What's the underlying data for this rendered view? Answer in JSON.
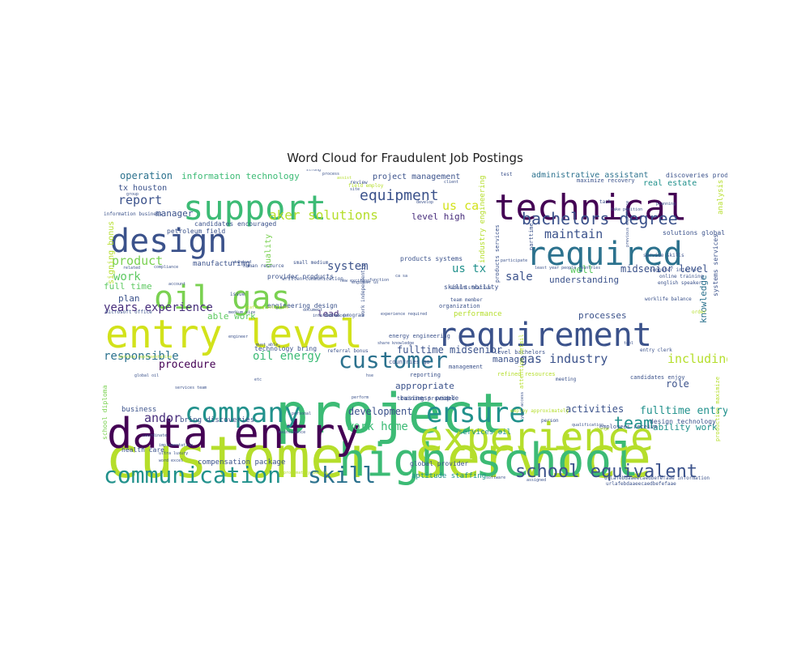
{
  "title": "Word Cloud for Fraudulent Job Postings",
  "palette": [
    "#440154",
    "#3b528b",
    "#21918c",
    "#3cbb75",
    "#5ec962",
    "#b5de2b",
    "#fde725",
    "#2c728e",
    "#472d7b",
    "#7ad151"
  ],
  "words": [
    {
      "text": "customer service",
      "color": "#b5de2b"
    },
    {
      "text": "project",
      "color": "#3cbb75"
    },
    {
      "text": "high school",
      "color": "#3cbb75"
    },
    {
      "text": "data entry",
      "color": "#440154"
    },
    {
      "text": "experience",
      "color": "#b5de2b"
    },
    {
      "text": "entry level",
      "color": "#d2e21b"
    },
    {
      "text": "technical",
      "color": "#440154"
    },
    {
      "text": "support",
      "color": "#3cbb75"
    },
    {
      "text": "requirement",
      "color": "#3b528b"
    },
    {
      "text": "required",
      "color": "#2c728e"
    },
    {
      "text": "design",
      "color": "#3b528b"
    },
    {
      "text": "oil gas",
      "color": "#7ad151"
    },
    {
      "text": "company",
      "color": "#21918c"
    },
    {
      "text": "ensure",
      "color": "#21918c"
    },
    {
      "text": "communication",
      "color": "#21918c"
    },
    {
      "text": "skill",
      "color": "#2c728e"
    },
    {
      "text": "customer",
      "color": "#2c728e"
    },
    {
      "text": "school equivalent",
      "color": "#3b528b"
    },
    {
      "text": "bachelors degree",
      "color": "#3b528b"
    },
    {
      "text": "equipment",
      "color": "#3b528b"
    },
    {
      "text": "aker solutions",
      "color": "#b5de2b"
    },
    {
      "text": "team",
      "color": "#21918c"
    },
    {
      "text": "years experience",
      "color": "#472d7b"
    },
    {
      "text": "including",
      "color": "#b5de2b"
    },
    {
      "text": "responsible",
      "color": "#2c728e"
    },
    {
      "text": "maintain",
      "color": "#3b528b"
    },
    {
      "text": "work home",
      "color": "#3cbb75"
    },
    {
      "text": "gas industry",
      "color": "#3b528b"
    },
    {
      "text": "oil energy",
      "color": "#3cbb75"
    },
    {
      "text": "product",
      "color": "#7ad151"
    },
    {
      "text": "procedure",
      "color": "#440154"
    },
    {
      "text": "andor",
      "color": "#472d7b"
    },
    {
      "text": "report",
      "color": "#3b528b"
    },
    {
      "text": "system",
      "color": "#3b528b"
    },
    {
      "text": "sale",
      "color": "#3b528b"
    },
    {
      "text": "us tx",
      "color": "#21918c"
    },
    {
      "text": "us ca",
      "color": "#d2e21b"
    },
    {
      "text": "work",
      "color": "#5ec962"
    },
    {
      "text": "development",
      "color": "#3b528b"
    },
    {
      "text": "fulltime entry",
      "color": "#21918c"
    },
    {
      "text": "activities",
      "color": "#3b528b"
    },
    {
      "text": "operation",
      "color": "#2c728e"
    },
    {
      "text": "information technology",
      "color": "#3cbb75"
    },
    {
      "text": "level high",
      "color": "#472d7b"
    },
    {
      "text": "midsenior level",
      "color": "#3b528b"
    },
    {
      "text": "fulltime midsenior",
      "color": "#3b528b"
    },
    {
      "text": "appropriate",
      "color": "#3b528b"
    },
    {
      "text": "manager",
      "color": "#3b528b"
    },
    {
      "text": "knowledge",
      "color": "#2c728e"
    },
    {
      "text": "role",
      "color": "#3b528b"
    },
    {
      "text": "processes",
      "color": "#3b528b"
    },
    {
      "text": "understanding",
      "color": "#3b528b"
    },
    {
      "text": "well",
      "color": "#5ec962"
    },
    {
      "text": "able work",
      "color": "#5ec962"
    },
    {
      "text": "lead",
      "color": "#472d7b"
    },
    {
      "text": "manage",
      "color": "#3b528b"
    },
    {
      "text": "ability work",
      "color": "#21918c"
    },
    {
      "text": "plan",
      "color": "#3b528b"
    },
    {
      "text": "full time",
      "color": "#5ec962"
    },
    {
      "text": "tx houston",
      "color": "#3b528b"
    },
    {
      "text": "project management",
      "color": "#3b528b"
    },
    {
      "text": "administrative assistant",
      "color": "#2c728e"
    },
    {
      "text": "real estate",
      "color": "#21918c"
    },
    {
      "text": "manufacturing",
      "color": "#3b528b"
    },
    {
      "text": "engineering design",
      "color": "#3b528b"
    },
    {
      "text": "technology bring",
      "color": "#3b528b"
    },
    {
      "text": "compensation package",
      "color": "#3b528b"
    },
    {
      "text": "aptitude staffing",
      "color": "#21918c"
    },
    {
      "text": "design technology",
      "color": "#3b528b"
    },
    {
      "text": "business",
      "color": "#3b528b"
    },
    {
      "text": "bring discoveries",
      "color": "#3b528b"
    },
    {
      "text": "services oil",
      "color": "#21918c"
    },
    {
      "text": "global provider",
      "color": "#3b528b"
    },
    {
      "text": "business people",
      "color": "#3b528b"
    },
    {
      "text": "products systems",
      "color": "#3b528b"
    },
    {
      "text": "skills ability",
      "color": "#3b528b"
    },
    {
      "text": "candidates encouraged",
      "color": "#3b528b"
    },
    {
      "text": "petroleum field",
      "color": "#3b528b"
    },
    {
      "text": "signing bonus",
      "color": "#b5de2b"
    },
    {
      "text": "school diploma",
      "color": "#7ad151"
    },
    {
      "text": "quality",
      "color": "#7ad151"
    },
    {
      "text": "solutions global",
      "color": "#3b528b"
    },
    {
      "text": "discoveries production",
      "color": "#3b528b"
    },
    {
      "text": "systems services",
      "color": "#3b528b"
    },
    {
      "text": "analysis",
      "color": "#b5de2b"
    },
    {
      "text": "performance",
      "color": "#b5de2b"
    },
    {
      "text": "health care",
      "color": "#3b528b"
    },
    {
      "text": "industry engineering",
      "color": "#b5de2b"
    },
    {
      "text": "provider products",
      "color": "#3b528b"
    },
    {
      "text": "candidates enjoy",
      "color": "#3b528b"
    },
    {
      "text": "employees receive",
      "color": "#3b528b"
    },
    {
      "text": "maximize recovery",
      "color": "#3b528b"
    },
    {
      "text": "production maximize",
      "color": "#b5de2b"
    },
    {
      "text": "level bachelors",
      "color": "#3b528b"
    },
    {
      "text": "countries go",
      "color": "#3b528b"
    },
    {
      "text": "energy engineering",
      "color": "#3b528b"
    },
    {
      "text": "training provided",
      "color": "#3b528b"
    },
    {
      "text": "refined resources",
      "color": "#b5de2b"
    },
    {
      "text": "attention detail",
      "color": "#b5de2b"
    },
    {
      "text": "organization",
      "color": "#3b528b"
    },
    {
      "text": "management",
      "color": "#3b528b"
    },
    {
      "text": "reporting",
      "color": "#3b528b"
    },
    {
      "text": "administrative",
      "color": "#3b528b"
    },
    {
      "text": "english speaker",
      "color": "#3b528b"
    },
    {
      "text": "online training",
      "color": "#3b528b"
    },
    {
      "text": "computer internet",
      "color": "#3b528b"
    },
    {
      "text": "service skills",
      "color": "#3b528b"
    },
    {
      "text": "worklife balance",
      "color": "#3b528b"
    },
    {
      "text": "entry clerk",
      "color": "#3b528b"
    },
    {
      "text": "products services",
      "color": "#3b528b"
    },
    {
      "text": "information business",
      "color": "#3b528b"
    },
    {
      "text": "microsoft office",
      "color": "#3b528b"
    },
    {
      "text": "team member",
      "color": "#3b528b"
    },
    {
      "text": "staffing solutions",
      "color": "#b5de2b"
    },
    {
      "text": "internet access",
      "color": "#3b528b"
    },
    {
      "text": "referral bonus",
      "color": "#3b528b"
    },
    {
      "text": "bonus program",
      "color": "#3b528b"
    },
    {
      "text": "human resource",
      "color": "#3b528b"
    },
    {
      "text": "written communication",
      "color": "#3b528b"
    },
    {
      "text": "small medium",
      "color": "#3b528b"
    },
    {
      "text": "field employ",
      "color": "#b5de2b"
    },
    {
      "text": "employ approximately",
      "color": "#b5de2b"
    },
    {
      "text": "global oil",
      "color": "#3b528b"
    },
    {
      "text": "work independently",
      "color": "#3b528b"
    },
    {
      "text": "experience required",
      "color": "#3b528b"
    },
    {
      "text": "share knowledge",
      "color": "#3b528b"
    },
    {
      "text": "coordinate",
      "color": "#3b528b"
    },
    {
      "text": "implementation",
      "color": "#3b528b"
    },
    {
      "text": "ultra luxury",
      "color": "#3b528b"
    },
    {
      "text": "word excel",
      "color": "#3b528b"
    },
    {
      "text": "approximately people",
      "color": "#b5de2b"
    },
    {
      "text": "urlafebdaaeecaedbefefaae information",
      "color": "#3b528b"
    },
    {
      "text": "urlafebdaaeecaedbefefaae",
      "color": "#3b528b"
    },
    {
      "text": "parttime",
      "color": "#3b528b"
    },
    {
      "text": "test",
      "color": "#3b528b"
    },
    {
      "text": "task",
      "color": "#3b528b"
    },
    {
      "text": "planning",
      "color": "#3b528b"
    },
    {
      "text": "order",
      "color": "#b5de2b"
    },
    {
      "text": "perform",
      "color": "#3b528b"
    },
    {
      "text": "meeting",
      "color": "#3b528b"
    },
    {
      "text": "person",
      "color": "#3b528b"
    },
    {
      "text": "hse",
      "color": "#3b528b"
    },
    {
      "text": "etc",
      "color": "#3b528b"
    },
    {
      "text": "related",
      "color": "#3b528b"
    },
    {
      "text": "account",
      "color": "#3b528b"
    },
    {
      "text": "site",
      "color": "#3b528b"
    },
    {
      "text": "issue",
      "color": "#3b528b"
    },
    {
      "text": "review",
      "color": "#3b528b"
    },
    {
      "text": "develop",
      "color": "#3b528b"
    },
    {
      "text": "function",
      "color": "#3b528b"
    },
    {
      "text": "assist",
      "color": "#b5de2b"
    },
    {
      "text": "strong",
      "color": "#3b528b"
    },
    {
      "text": "process",
      "color": "#3b528b"
    },
    {
      "text": "client",
      "color": "#3b528b"
    },
    {
      "text": "standard",
      "color": "#3b528b"
    },
    {
      "text": "compliance",
      "color": "#3b528b"
    },
    {
      "text": "group",
      "color": "#3b528b"
    },
    {
      "text": "medium size",
      "color": "#3b528b"
    },
    {
      "text": "document",
      "color": "#3b528b"
    },
    {
      "text": "personal",
      "color": "#3b528b"
    },
    {
      "text": "maintenance",
      "color": "#3b528b"
    },
    {
      "text": "qualification",
      "color": "#3b528b"
    },
    {
      "text": "software",
      "color": "#3b528b"
    },
    {
      "text": "assigned",
      "color": "#3b528b"
    },
    {
      "text": "change",
      "color": "#b5de2b"
    },
    {
      "text": "tool",
      "color": "#3b528b"
    },
    {
      "text": "services team",
      "color": "#3b528b"
    },
    {
      "text": "engineer",
      "color": "#3b528b"
    },
    {
      "text": "must able",
      "color": "#3b528b"
    },
    {
      "text": "service representative",
      "color": "#b5de2b"
    },
    {
      "text": "year access",
      "color": "#3b528b"
    },
    {
      "text": "least year people countries",
      "color": "#3b528b"
    },
    {
      "text": "take position",
      "color": "#3b528b"
    },
    {
      "text": "previous experience",
      "color": "#3b528b"
    },
    {
      "text": "new exciting",
      "color": "#3b528b"
    },
    {
      "text": "participate",
      "color": "#3b528b"
    },
    {
      "text": "engineer us",
      "color": "#3b528b"
    },
    {
      "text": "ca sa",
      "color": "#3b528b"
    },
    {
      "text": "us ny",
      "color": "#3b528b"
    },
    {
      "text": "us md",
      "color": "#3b528b"
    },
    {
      "text": "phone calls",
      "color": "#3b528b"
    },
    {
      "text": "position",
      "color": "#3b528b"
    },
    {
      "text": "experience working",
      "color": "#3b528b"
    }
  ]
}
